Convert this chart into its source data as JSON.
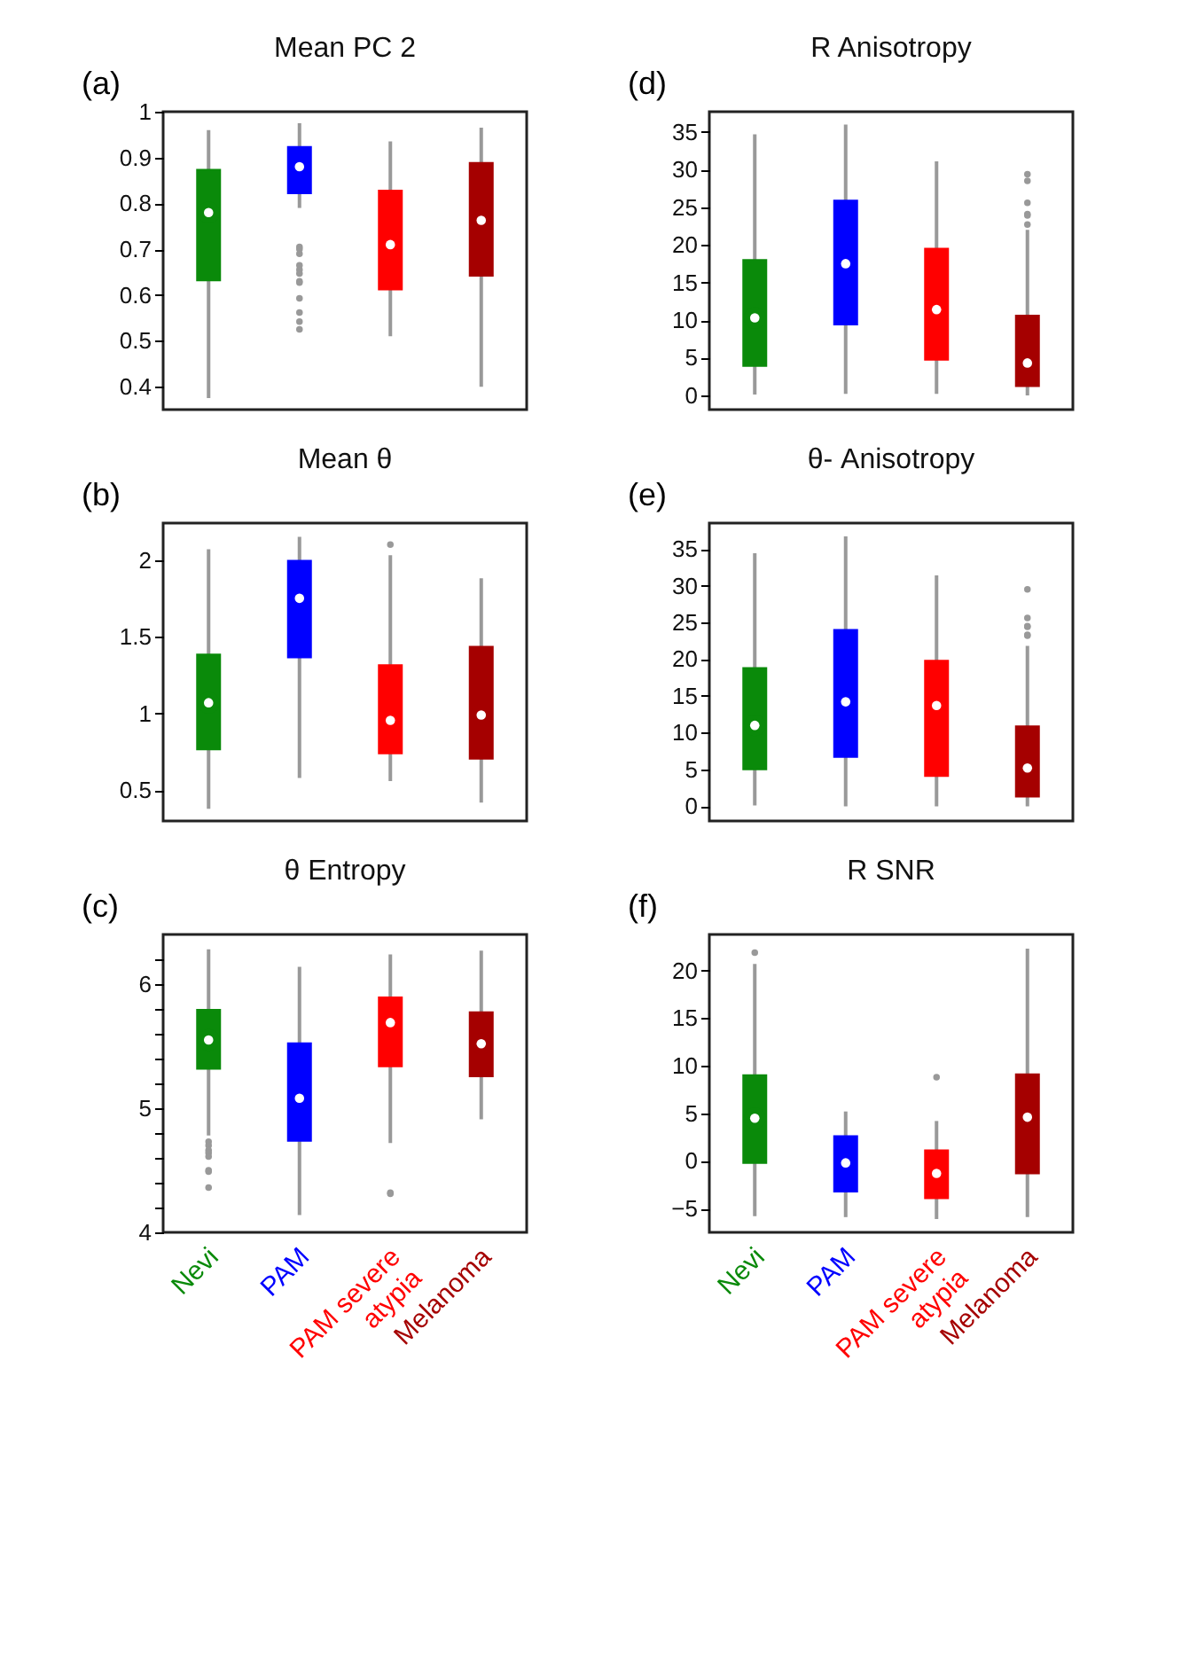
{
  "chart_data": [
    {
      "type": "box",
      "title": "Mean PC 2",
      "annotations": [
        "(a)"
      ],
      "categories": [
        "Nevi",
        "PAM",
        "PAM severe atypia",
        "Melanoma"
      ],
      "colors": [
        "#0a8a0a",
        "#0000ff",
        "#ff0000",
        "#a50000"
      ],
      "ylim": [
        0.35,
        1.0
      ],
      "yticks": [
        0.4,
        0.5,
        0.6,
        0.7,
        0.8,
        0.9,
        1
      ],
      "tick_labels": "y",
      "grid": false,
      "boxes": [
        {
          "low": 0.375,
          "q1": 0.63,
          "median": 0.78,
          "q3": 0.875,
          "high": 0.96
        },
        {
          "low": 0.79,
          "q1": 0.82,
          "median": 0.88,
          "q3": 0.925,
          "high": 0.975,
          "outliers": [
            0.705,
            0.7,
            0.69,
            0.665,
            0.655,
            0.647,
            0.63,
            0.627,
            0.593,
            0.562,
            0.542,
            0.525
          ]
        },
        {
          "low": 0.51,
          "q1": 0.61,
          "median": 0.71,
          "q3": 0.83,
          "high": 0.935
        },
        {
          "low": 0.4,
          "q1": 0.64,
          "median": 0.763,
          "q3": 0.89,
          "high": 0.965
        }
      ]
    },
    {
      "type": "box",
      "title": "Mean θ",
      "annotations": [
        "(b)"
      ],
      "categories": [
        "Nevi",
        "PAM",
        "PAM severe atypia",
        "Melanoma"
      ],
      "colors": [
        "#0a8a0a",
        "#0000ff",
        "#ff0000",
        "#a50000"
      ],
      "ylim": [
        0.3,
        2.24
      ],
      "yticks": [
        0.5,
        1,
        1.5,
        2
      ],
      "tick_labels": "y",
      "grid": false,
      "boxes": [
        {
          "low": 0.38,
          "q1": 0.76,
          "median": 1.07,
          "q3": 1.39,
          "high": 2.07
        },
        {
          "low": 0.58,
          "q1": 1.36,
          "median": 1.75,
          "q3": 2.0,
          "high": 2.15
        },
        {
          "low": 0.56,
          "q1": 0.735,
          "median": 0.955,
          "q3": 1.32,
          "high": 2.03,
          "outliers": [
            2.1
          ]
        },
        {
          "low": 0.42,
          "q1": 0.7,
          "median": 0.99,
          "q3": 1.44,
          "high": 1.88
        }
      ]
    },
    {
      "type": "box",
      "title": "θ Entropy",
      "annotations": [
        "(c)"
      ],
      "categories": [
        "Nevi",
        "PAM",
        "PAM severe atypia",
        "Melanoma"
      ],
      "colors": [
        "#0a8a0a",
        "#0000ff",
        "#ff0000",
        "#a50000"
      ],
      "ylim": [
        4.0,
        6.4
      ],
      "yticks": [
        4,
        {
          "value": 4.2,
          "label": null
        },
        {
          "value": 4.4,
          "label": null
        },
        {
          "value": 4.6,
          "label": null
        },
        {
          "value": 4.8,
          "label": null
        },
        5,
        {
          "value": 5.2,
          "label": null
        },
        {
          "value": 5.4,
          "label": null
        },
        {
          "value": 5.6,
          "label": null
        },
        {
          "value": 5.8,
          "label": null
        },
        6,
        {
          "value": 6.2,
          "label": null
        }
      ],
      "grid": false,
      "boxes": [
        {
          "low": 4.78,
          "q1": 5.31,
          "median": 5.55,
          "q3": 5.8,
          "high": 6.28,
          "outliers": [
            4.73,
            4.7,
            4.66,
            4.64,
            4.61,
            4.5,
            4.49,
            4.36
          ]
        },
        {
          "low": 4.14,
          "q1": 4.73,
          "median": 5.08,
          "q3": 5.53,
          "high": 6.14
        },
        {
          "low": 4.72,
          "q1": 5.33,
          "median": 5.69,
          "q3": 5.9,
          "high": 6.24,
          "outliers": [
            4.32,
            4.31
          ]
        },
        {
          "low": 4.91,
          "q1": 5.25,
          "median": 5.52,
          "q3": 5.78,
          "high": 6.27
        }
      ]
    },
    {
      "type": "box",
      "title": "R Anisotropy",
      "annotations": [
        "(d)"
      ],
      "categories": [
        "Nevi",
        "PAM",
        "PAM severe atypia",
        "Melanoma"
      ],
      "colors": [
        "#0a8a0a",
        "#0000ff",
        "#ff0000",
        "#a50000"
      ],
      "ylim": [
        -1.9,
        37.7
      ],
      "yticks": [
        0,
        5,
        10,
        15,
        20,
        25,
        30,
        35
      ],
      "tick_labels": "y",
      "grid": false,
      "boxes": [
        {
          "low": 0.1,
          "q1": 3.8,
          "median": 10.3,
          "q3": 18.1,
          "high": 34.7
        },
        {
          "low": 0.2,
          "q1": 9.3,
          "median": 17.5,
          "q3": 26.0,
          "high": 36.0
        },
        {
          "low": 0.2,
          "q1": 4.6,
          "median": 11.4,
          "q3": 19.6,
          "high": 31.1
        },
        {
          "low": 0,
          "q1": 1.1,
          "median": 4.3,
          "q3": 10.7,
          "high": 22.0,
          "outliers": [
            29.4,
            28.5,
            25.6,
            24.1,
            23.9,
            22.7
          ]
        }
      ]
    },
    {
      "type": "box",
      "title": "θ- Anisotropy",
      "annotations": [
        "(e)"
      ],
      "categories": [
        "Nevi",
        "PAM",
        "PAM severe atypia",
        "Melanoma"
      ],
      "colors": [
        "#0a8a0a",
        "#0000ff",
        "#ff0000",
        "#a50000"
      ],
      "ylim": [
        -2.0,
        38.5
      ],
      "yticks": [
        0,
        5,
        10,
        15,
        20,
        25,
        30,
        35
      ],
      "tick_labels": "y",
      "grid": false,
      "boxes": [
        {
          "low": 0.1,
          "q1": 4.9,
          "median": 11.0,
          "q3": 18.9,
          "high": 34.4
        },
        {
          "low": 0,
          "q1": 6.6,
          "median": 14.2,
          "q3": 24.1,
          "high": 36.7
        },
        {
          "low": 0,
          "q1": 4.0,
          "median": 13.7,
          "q3": 19.9,
          "high": 31.4
        },
        {
          "low": 0,
          "q1": 1.2,
          "median": 5.2,
          "q3": 11.0,
          "high": 21.8,
          "outliers": [
            29.5,
            25.6,
            24.5,
            24.4,
            23.3,
            23.2
          ]
        }
      ]
    },
    {
      "type": "box",
      "title": "R SNR",
      "annotations": [
        "(f)"
      ],
      "categories": [
        "Nevi",
        "PAM",
        "PAM severe atypia",
        "Melanoma"
      ],
      "colors": [
        "#0a8a0a",
        "#0000ff",
        "#ff0000",
        "#a50000"
      ],
      "ylim": [
        -7.5,
        23.8
      ],
      "yticks": [
        -5,
        0,
        5,
        10,
        15,
        20
      ],
      "grid": false,
      "boxes": [
        {
          "low": -5.8,
          "q1": -0.3,
          "median": 4.5,
          "q3": 9.1,
          "high": 20.7,
          "outliers": [
            21.9
          ]
        },
        {
          "low": -5.9,
          "q1": -3.3,
          "median": -0.2,
          "q3": 2.7,
          "high": 5.2
        },
        {
          "low": -6.1,
          "q1": -4.0,
          "median": -1.3,
          "q3": 1.2,
          "high": 4.2,
          "outliers": [
            8.8
          ]
        },
        {
          "low": -5.9,
          "q1": -1.4,
          "median": 4.6,
          "q3": 9.2,
          "high": 22.3
        }
      ]
    }
  ]
}
